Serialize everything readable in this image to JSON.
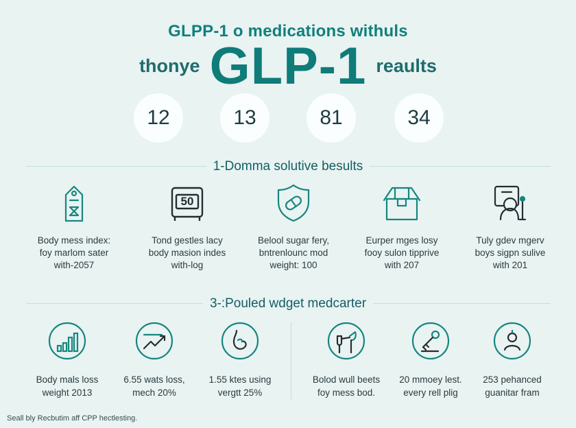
{
  "header": {
    "title_line1": "GLPP-1 o medications withuls",
    "title_prefix": "thonye",
    "title_big": "GLP-1",
    "title_suffix": "reaults"
  },
  "stats": [
    "12",
    "13",
    "81",
    "34"
  ],
  "section1": {
    "title": "1-Domma solutive besults",
    "items": [
      {
        "icon": "tag-icon",
        "lines": [
          "Body mess index:",
          "foy marlom sater",
          "with-2057"
        ]
      },
      {
        "icon": "scale-icon",
        "label": "50",
        "lines": [
          "Tond gestles lacy",
          "body masion indes",
          "with-log"
        ]
      },
      {
        "icon": "shield-pill-icon",
        "lines": [
          "Belool sugar fery,",
          "bntrenlounc mod",
          "weight: 100"
        ]
      },
      {
        "icon": "box-icon",
        "lines": [
          "Eurper mges losy",
          "fooy sulon tipprive",
          "with 207"
        ]
      },
      {
        "icon": "person-monitor-icon",
        "lines": [
          "Tuly gdev mgerv",
          "boys sigpn sulive",
          "with 201"
        ]
      }
    ]
  },
  "section2": {
    "title": "3-:Pouled wdget medcarter",
    "items": [
      {
        "icon": "bar-chart-icon",
        "lines": [
          "Body mals loss",
          "weight 2013"
        ]
      },
      {
        "icon": "trend-up-icon",
        "lines": [
          "6.55 wats loss,",
          "mech 20%"
        ]
      },
      {
        "icon": "stomach-icon",
        "lines": [
          "1.55 ktes using",
          "vergtt 25%"
        ]
      },
      {
        "icon": "glasses-icon",
        "lines": [
          "Bolod wull beets",
          "foy mess bod."
        ]
      },
      {
        "icon": "key-icon",
        "lines": [
          "20 mmoey lest.",
          "every rell plig"
        ]
      },
      {
        "icon": "person-circle-icon",
        "lines": [
          "253 pehanced",
          "guanitar fram"
        ]
      }
    ]
  },
  "footer": {
    "text": "Seall bly Recbutim aff CPP hectlesting."
  },
  "colors": {
    "accent": "#0f7c79",
    "background": "#e8f3f2"
  }
}
